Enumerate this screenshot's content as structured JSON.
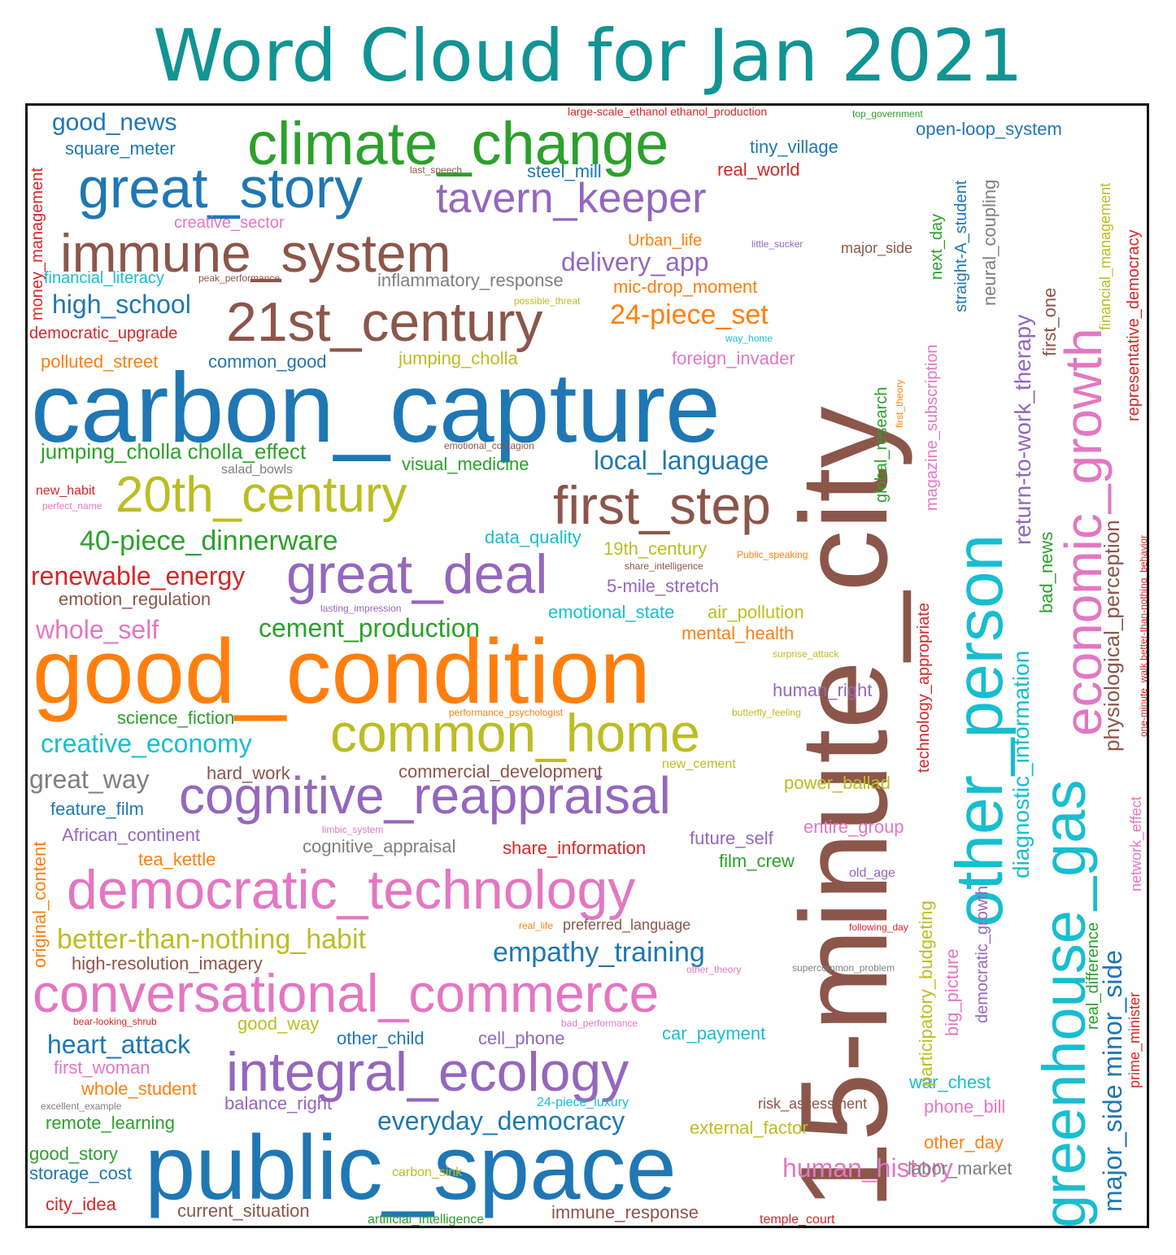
{
  "title": "Word Cloud for Jan 2021",
  "colors": {
    "title": "#129494",
    "blue": "#1f77b4",
    "orange": "#ff7f0e",
    "green": "#2ca02c",
    "red": "#d62728",
    "purple": "#9467bd",
    "brown": "#8c564b",
    "pink": "#e377c2",
    "gray": "#7f7f7f",
    "olive": "#bcbd22",
    "cyan": "#17becf"
  },
  "words": [
    {
      "text": "15-minute_city",
      "color": "brown"
    },
    {
      "text": "carbon_capture",
      "color": "blue"
    },
    {
      "text": "good_condition",
      "color": "orange"
    },
    {
      "text": "public_space",
      "color": "blue"
    },
    {
      "text": "other_person",
      "color": "cyan"
    },
    {
      "text": "greenhouse_gas",
      "color": "cyan"
    },
    {
      "text": "economic_growth",
      "color": "pink"
    },
    {
      "text": "climate_change",
      "color": "green"
    },
    {
      "text": "great_story",
      "color": "blue"
    },
    {
      "text": "immune_system",
      "color": "brown"
    },
    {
      "text": "21st_century",
      "color": "brown"
    },
    {
      "text": "20th_century",
      "color": "olive"
    },
    {
      "text": "first_step",
      "color": "brown"
    },
    {
      "text": "great_deal",
      "color": "purple"
    },
    {
      "text": "common_home",
      "color": "olive"
    },
    {
      "text": "cognitive_reappraisal",
      "color": "purple"
    },
    {
      "text": "democratic_technology",
      "color": "pink"
    },
    {
      "text": "conversational_commerce",
      "color": "pink"
    },
    {
      "text": "integral_ecology",
      "color": "purple"
    },
    {
      "text": "tavern_keeper",
      "color": "purple"
    },
    {
      "text": "major_side minor_side",
      "color": "blue"
    },
    {
      "text": "good_news",
      "color": "blue"
    },
    {
      "text": "square_meter",
      "color": "blue"
    },
    {
      "text": "last_speech",
      "color": "brown"
    },
    {
      "text": "steel_mill",
      "color": "blue"
    },
    {
      "text": "tiny_village",
      "color": "blue"
    },
    {
      "text": "real_world",
      "color": "red"
    },
    {
      "text": "large-scale_ethanol ethanol_production",
      "color": "red"
    },
    {
      "text": "top_government",
      "color": "green"
    },
    {
      "text": "open-loop_system",
      "color": "blue"
    },
    {
      "text": "creative_sector",
      "color": "pink"
    },
    {
      "text": "Urban_life",
      "color": "orange"
    },
    {
      "text": "little_sucker",
      "color": "purple"
    },
    {
      "text": "major_side",
      "color": "brown"
    },
    {
      "text": "delivery_app",
      "color": "purple"
    },
    {
      "text": "financial_literacy",
      "color": "cyan"
    },
    {
      "text": "peak_performance",
      "color": "brown"
    },
    {
      "text": "inflammatory_response",
      "color": "gray"
    },
    {
      "text": "mic-drop_moment",
      "color": "orange"
    },
    {
      "text": "possible_threat",
      "color": "olive"
    },
    {
      "text": "high_school",
      "color": "blue"
    },
    {
      "text": "24-piece_set",
      "color": "orange"
    },
    {
      "text": "democratic_upgrade",
      "color": "red"
    },
    {
      "text": "way_home",
      "color": "cyan"
    },
    {
      "text": "polluted_street",
      "color": "orange"
    },
    {
      "text": "common_good",
      "color": "blue"
    },
    {
      "text": "jumping_cholla",
      "color": "olive"
    },
    {
      "text": "foreign_invader",
      "color": "pink"
    },
    {
      "text": "jumping_cholla cholla_effect",
      "color": "green"
    },
    {
      "text": "emotional_contagion",
      "color": "brown"
    },
    {
      "text": "visual_medicine",
      "color": "green"
    },
    {
      "text": "local_language",
      "color": "blue"
    },
    {
      "text": "salad_bowls",
      "color": "gray"
    },
    {
      "text": "new_habit",
      "color": "red"
    },
    {
      "text": "perfect_name",
      "color": "pink"
    },
    {
      "text": "40-piece_dinnerware",
      "color": "green"
    },
    {
      "text": "data_quality",
      "color": "cyan"
    },
    {
      "text": "19th_century",
      "color": "olive"
    },
    {
      "text": "Public_speaking",
      "color": "orange"
    },
    {
      "text": "share_intelligence",
      "color": "brown"
    },
    {
      "text": "renewable_energy",
      "color": "red"
    },
    {
      "text": "5-mile_stretch",
      "color": "purple"
    },
    {
      "text": "emotion_regulation",
      "color": "brown"
    },
    {
      "text": "lasting_impression",
      "color": "purple"
    },
    {
      "text": "emotional_state",
      "color": "cyan"
    },
    {
      "text": "air_pollution",
      "color": "olive"
    },
    {
      "text": "whole_self",
      "color": "pink"
    },
    {
      "text": "cement_production",
      "color": "green"
    },
    {
      "text": "mental_health",
      "color": "orange"
    },
    {
      "text": "surprise_attack",
      "color": "olive"
    },
    {
      "text": "human_right",
      "color": "purple"
    },
    {
      "text": "science_fiction",
      "color": "green"
    },
    {
      "text": "performance_psychologist",
      "color": "orange"
    },
    {
      "text": "butterfly_feeling",
      "color": "olive"
    },
    {
      "text": "creative_economy",
      "color": "cyan"
    },
    {
      "text": "great_way",
      "color": "gray"
    },
    {
      "text": "hard_work",
      "color": "brown"
    },
    {
      "text": "commercial_development",
      "color": "brown"
    },
    {
      "text": "new_cement",
      "color": "olive"
    },
    {
      "text": "power_ballad",
      "color": "olive"
    },
    {
      "text": "feature_film",
      "color": "blue"
    },
    {
      "text": "African_continent",
      "color": "purple"
    },
    {
      "text": "limbic_system",
      "color": "pink"
    },
    {
      "text": "future_self",
      "color": "purple"
    },
    {
      "text": "entire_group",
      "color": "pink"
    },
    {
      "text": "tea_kettle",
      "color": "orange"
    },
    {
      "text": "cognitive_appraisal",
      "color": "gray"
    },
    {
      "text": "share_information",
      "color": "red"
    },
    {
      "text": "film_crew",
      "color": "green"
    },
    {
      "text": "old_age",
      "color": "purple"
    },
    {
      "text": "better-than-nothing_habit",
      "color": "olive"
    },
    {
      "text": "real_life",
      "color": "orange"
    },
    {
      "text": "preferred_language",
      "color": "brown"
    },
    {
      "text": "following_day",
      "color": "red"
    },
    {
      "text": "empathy_training",
      "color": "blue"
    },
    {
      "text": "high-resolution_imagery",
      "color": "brown"
    },
    {
      "text": "other_theory",
      "color": "pink"
    },
    {
      "text": "supercommon_problem",
      "color": "gray"
    },
    {
      "text": "bear-looking_shrub",
      "color": "red"
    },
    {
      "text": "bad_performance",
      "color": "pink"
    },
    {
      "text": "good_way",
      "color": "olive"
    },
    {
      "text": "heart_attack",
      "color": "blue"
    },
    {
      "text": "other_child",
      "color": "blue"
    },
    {
      "text": "cell_phone",
      "color": "purple"
    },
    {
      "text": "car_payment",
      "color": "cyan"
    },
    {
      "text": "first_woman",
      "color": "pink"
    },
    {
      "text": "whole_student",
      "color": "orange"
    },
    {
      "text": "balance_right",
      "color": "purple"
    },
    {
      "text": "24-piece_luxury",
      "color": "cyan"
    },
    {
      "text": "risk_assessment",
      "color": "brown"
    },
    {
      "text": "excellent_example",
      "color": "gray"
    },
    {
      "text": "remote_learning",
      "color": "green"
    },
    {
      "text": "everyday_democracy",
      "color": "blue"
    },
    {
      "text": "external_factor",
      "color": "olive"
    },
    {
      "text": "good_story",
      "color": "green"
    },
    {
      "text": "storage_cost",
      "color": "blue"
    },
    {
      "text": "carbon_sink",
      "color": "olive"
    },
    {
      "text": "city_idea",
      "color": "red"
    },
    {
      "text": "current_situation",
      "color": "brown"
    },
    {
      "text": "artificial_intelligence",
      "color": "green"
    },
    {
      "text": "immune_response",
      "color": "brown"
    },
    {
      "text": "temple_court",
      "color": "red"
    },
    {
      "text": "human_history",
      "color": "pink"
    },
    {
      "text": "war_chest",
      "color": "cyan"
    },
    {
      "text": "phone_bill",
      "color": "pink"
    },
    {
      "text": "other_day",
      "color": "orange"
    },
    {
      "text": "labor_market",
      "color": "gray"
    },
    {
      "text": "money_management",
      "color": "red"
    },
    {
      "text": "original_content",
      "color": "orange"
    },
    {
      "text": "straight-A_student",
      "color": "blue"
    },
    {
      "text": "next_day",
      "color": "green"
    },
    {
      "text": "neural_coupling",
      "color": "gray"
    },
    {
      "text": "return-to-work_therapy",
      "color": "purple"
    },
    {
      "text": "first_one",
      "color": "brown"
    },
    {
      "text": "financial_management",
      "color": "olive"
    },
    {
      "text": "representative_democracy",
      "color": "red"
    },
    {
      "text": "magazine_subscription",
      "color": "pink"
    },
    {
      "text": "global_research",
      "color": "green"
    },
    {
      "text": "first_theory",
      "color": "orange"
    },
    {
      "text": "physiological_perception",
      "color": "brown"
    },
    {
      "text": "one-minute_walk better-than-nothing_behavior",
      "color": "red"
    },
    {
      "text": "technology_appropriate",
      "color": "red"
    },
    {
      "text": "diagnostic_information",
      "color": "cyan"
    },
    {
      "text": "bad_news",
      "color": "green"
    },
    {
      "text": "network_effect",
      "color": "pink"
    },
    {
      "text": "participatory_budgeting",
      "color": "olive"
    },
    {
      "text": "big_picture",
      "color": "pink"
    },
    {
      "text": "democratic_growth",
      "color": "purple"
    },
    {
      "text": "real_difference",
      "color": "green"
    },
    {
      "text": "prime_minister",
      "color": "red"
    }
  ]
}
